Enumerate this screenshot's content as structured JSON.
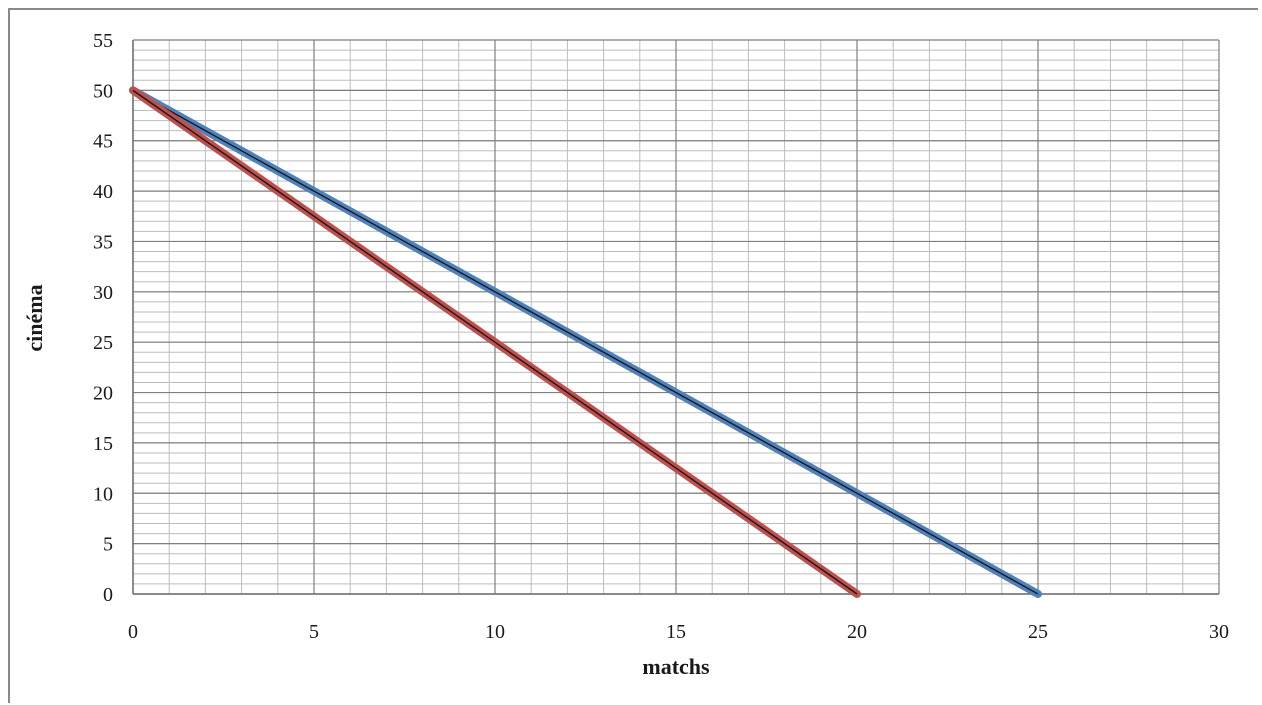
{
  "chart_data": {
    "type": "line",
    "title": "",
    "xlabel": "matchs",
    "ylabel": "cinéma",
    "xlim": [
      0,
      30
    ],
    "ylim": [
      0,
      55
    ],
    "x_ticks": [
      "0",
      "5",
      "10",
      "15",
      "20",
      "25",
      "30"
    ],
    "y_ticks": [
      "0",
      "5",
      "10",
      "15",
      "20",
      "25",
      "30",
      "35",
      "40",
      "45",
      "50",
      "55"
    ],
    "grid": true,
    "legend": "none",
    "series": [
      {
        "color": "#4f81bd",
        "x": [
          0,
          25
        ],
        "y": [
          50,
          0
        ]
      },
      {
        "color": "#c0504d",
        "x": [
          0,
          20
        ],
        "y": [
          50,
          0
        ]
      }
    ]
  }
}
